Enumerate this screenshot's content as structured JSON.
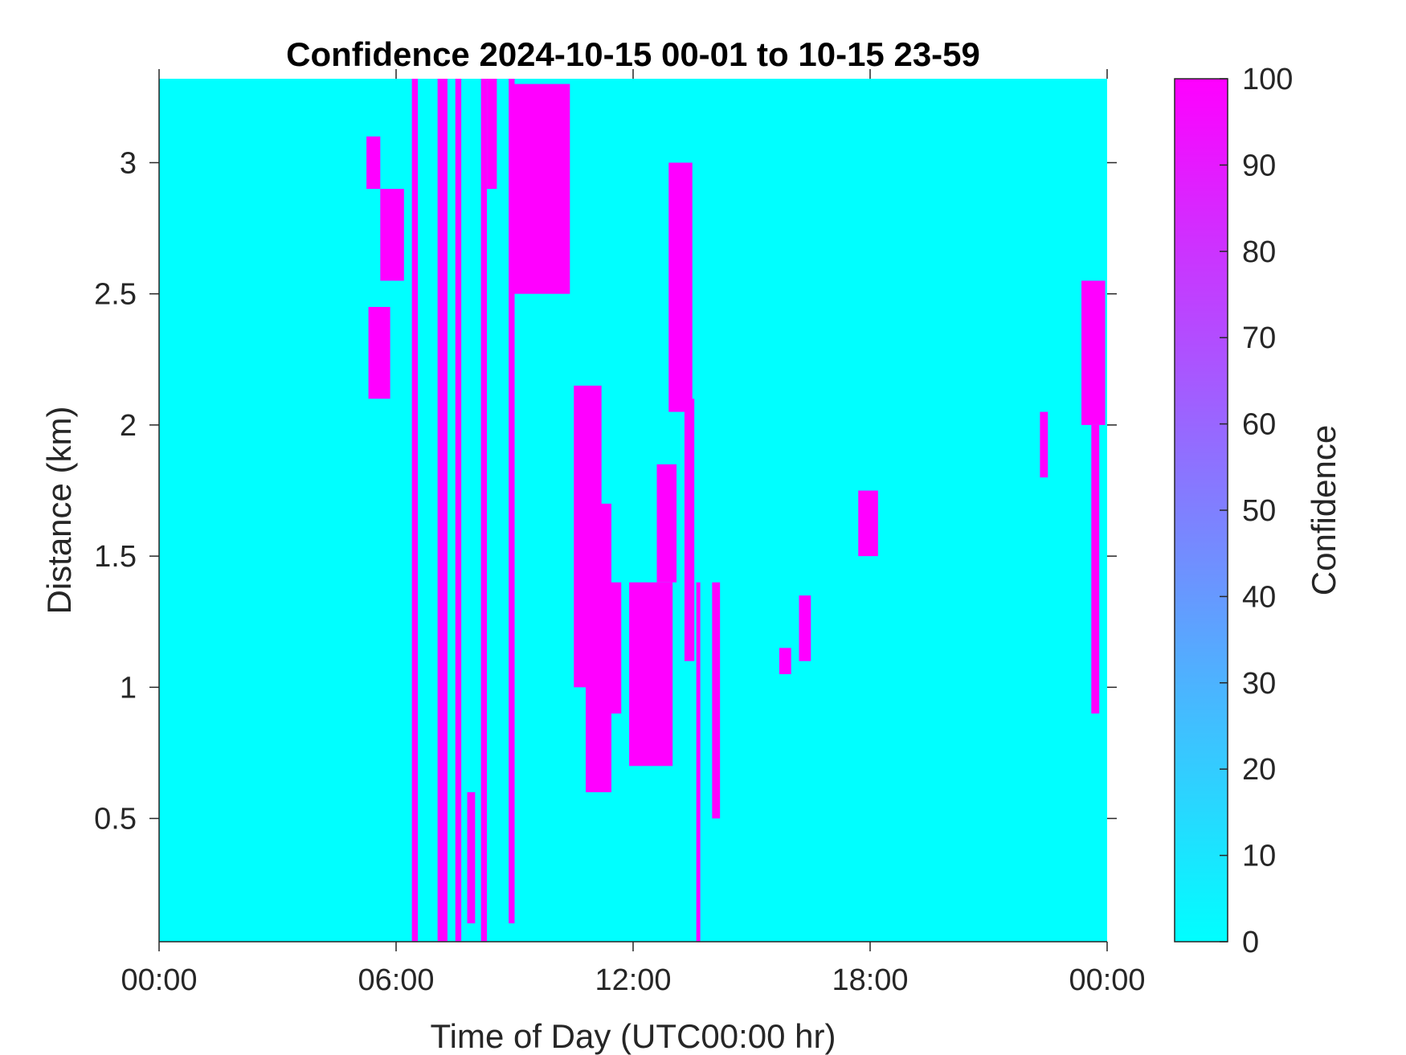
{
  "chart_data": {
    "type": "heatmap",
    "title": "Confidence 2024-10-15 00-01 to 10-15 23-59",
    "xlabel": "Time of Day (UTC00:00 hr)",
    "ylabel": "Distance (km)",
    "xlim": [
      0,
      24
    ],
    "ylim": [
      0.03,
      3.32
    ],
    "x_ticks": [
      0,
      6,
      12,
      18,
      24
    ],
    "x_tick_labels": [
      "00:00",
      "06:00",
      "12:00",
      "18:00",
      "00:00"
    ],
    "y_ticks": [
      0.5,
      1,
      1.5,
      2,
      2.5,
      3
    ],
    "y_tick_labels": [
      "0.5",
      "1",
      "1.5",
      "2",
      "2.5",
      "3"
    ],
    "background_value": 0,
    "colormap": [
      "#00ffff",
      "#ff00ff"
    ],
    "colorbar": {
      "label": "Confidence",
      "range": [
        0,
        100
      ],
      "ticks": [
        0,
        10,
        20,
        30,
        40,
        50,
        60,
        70,
        80,
        90,
        100
      ],
      "tick_labels": [
        "0",
        "10",
        "20",
        "30",
        "40",
        "50",
        "60",
        "70",
        "80",
        "90",
        "100"
      ]
    },
    "grid": false,
    "high_confidence_regions": [
      {
        "x0": 5.25,
        "x1": 5.6,
        "y0": 2.9,
        "y1": 3.1,
        "value": 100
      },
      {
        "x0": 5.6,
        "x1": 6.2,
        "y0": 2.55,
        "y1": 2.9,
        "value": 100
      },
      {
        "x0": 5.3,
        "x1": 5.85,
        "y0": 2.1,
        "y1": 2.45,
        "value": 100
      },
      {
        "x0": 6.4,
        "x1": 6.55,
        "y0": 0.03,
        "y1": 3.32,
        "value": 100
      },
      {
        "x0": 7.05,
        "x1": 7.3,
        "y0": 0.03,
        "y1": 3.32,
        "value": 100
      },
      {
        "x0": 7.5,
        "x1": 7.65,
        "y0": 0.03,
        "y1": 3.32,
        "value": 100
      },
      {
        "x0": 7.8,
        "x1": 8.0,
        "y0": 0.1,
        "y1": 0.6,
        "value": 100
      },
      {
        "x0": 8.15,
        "x1": 8.3,
        "y0": 0.03,
        "y1": 3.32,
        "value": 100
      },
      {
        "x0": 8.3,
        "x1": 8.55,
        "y0": 2.9,
        "y1": 3.32,
        "value": 100
      },
      {
        "x0": 8.85,
        "x1": 9.0,
        "y0": 0.1,
        "y1": 3.32,
        "value": 100
      },
      {
        "x0": 9.0,
        "x1": 10.4,
        "y0": 2.5,
        "y1": 3.3,
        "value": 100
      },
      {
        "x0": 10.5,
        "x1": 11.2,
        "y0": 1.0,
        "y1": 2.15,
        "value": 100
      },
      {
        "x0": 10.8,
        "x1": 11.45,
        "y0": 0.6,
        "y1": 1.7,
        "value": 100
      },
      {
        "x0": 11.4,
        "x1": 11.7,
        "y0": 0.9,
        "y1": 1.4,
        "value": 100
      },
      {
        "x0": 11.9,
        "x1": 13.0,
        "y0": 0.7,
        "y1": 1.4,
        "value": 100
      },
      {
        "x0": 12.6,
        "x1": 13.1,
        "y0": 1.4,
        "y1": 1.85,
        "value": 100
      },
      {
        "x0": 12.9,
        "x1": 13.5,
        "y0": 2.05,
        "y1": 3.0,
        "value": 100
      },
      {
        "x0": 13.3,
        "x1": 13.55,
        "y0": 1.1,
        "y1": 2.1,
        "value": 100
      },
      {
        "x0": 13.6,
        "x1": 13.7,
        "y0": 0.03,
        "y1": 1.4,
        "value": 100
      },
      {
        "x0": 14.0,
        "x1": 14.2,
        "y0": 0.5,
        "y1": 1.4,
        "value": 100
      },
      {
        "x0": 15.7,
        "x1": 16.0,
        "y0": 1.05,
        "y1": 1.15,
        "value": 100
      },
      {
        "x0": 16.2,
        "x1": 16.5,
        "y0": 1.1,
        "y1": 1.35,
        "value": 100
      },
      {
        "x0": 17.7,
        "x1": 18.2,
        "y0": 1.5,
        "y1": 1.75,
        "value": 100
      },
      {
        "x0": 23.35,
        "x1": 23.95,
        "y0": 2.0,
        "y1": 2.55,
        "value": 100
      },
      {
        "x0": 23.6,
        "x1": 23.8,
        "y0": 0.9,
        "y1": 2.0,
        "value": 100
      },
      {
        "x0": 22.3,
        "x1": 22.5,
        "y0": 1.8,
        "y1": 2.05,
        "value": 100
      }
    ]
  }
}
